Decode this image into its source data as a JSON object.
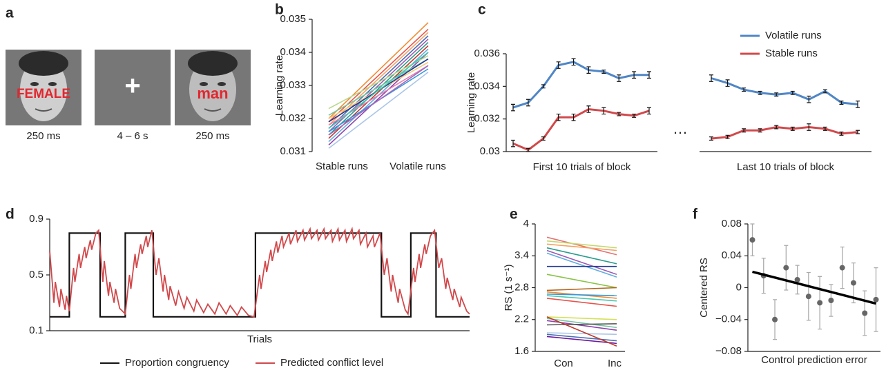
{
  "panel_a": {
    "label": "a",
    "frames": [
      {
        "caption": "250 ms",
        "word": "FEMALE"
      },
      {
        "caption": "4 – 6 s",
        "symbol": "+"
      },
      {
        "caption": "250 ms",
        "word": "man"
      }
    ]
  },
  "chart_data": [
    {
      "type": "line",
      "panel": "b",
      "ylabel": "Learning rate",
      "categories": [
        "Stable runs",
        "Volatile runs"
      ],
      "ylim": [
        0.031,
        0.035
      ],
      "yticks": [
        0.031,
        0.032,
        0.033,
        0.034,
        0.035
      ],
      "series": [
        {
          "color": "#f28a30",
          "values": [
            0.032,
            0.0349
          ]
        },
        {
          "color": "#e8534a",
          "values": [
            0.0319,
            0.0347
          ]
        },
        {
          "color": "#f4a261",
          "values": [
            0.0318,
            0.0346
          ]
        },
        {
          "color": "#4b6fb5",
          "values": [
            0.0317,
            0.0345
          ]
        },
        {
          "color": "#9b59b6",
          "values": [
            0.0316,
            0.0344
          ]
        },
        {
          "color": "#2a9d8f",
          "values": [
            0.0315,
            0.0343
          ]
        },
        {
          "color": "#c0392b",
          "values": [
            0.0314,
            0.0342
          ]
        },
        {
          "color": "#5dade2",
          "values": [
            0.0313,
            0.0341
          ]
        },
        {
          "color": "#8e44ad",
          "values": [
            0.0312,
            0.034
          ]
        },
        {
          "color": "#b5d98a",
          "values": [
            0.0323,
            0.0339
          ]
        },
        {
          "color": "#76c7a1",
          "values": [
            0.0321,
            0.0338
          ]
        },
        {
          "color": "#f7c873",
          "values": [
            0.032,
            0.0337
          ]
        },
        {
          "color": "#e67eb0",
          "values": [
            0.0318,
            0.0336
          ]
        },
        {
          "color": "#3498db",
          "values": [
            0.0316,
            0.0335
          ]
        },
        {
          "color": "#aac4e8",
          "values": [
            0.0311,
            0.0334
          ]
        },
        {
          "color": "#1f3a93",
          "values": [
            0.0319,
            0.0338
          ]
        },
        {
          "color": "#48c9b0",
          "values": [
            0.0317,
            0.034
          ]
        },
        {
          "color": "#a569bd",
          "values": [
            0.0315,
            0.0336
          ]
        }
      ]
    },
    {
      "type": "line",
      "panel": "c",
      "ylabel": "Learning rate",
      "xlabels": [
        "First 10 trials of block",
        "Last 10 trials of block"
      ],
      "gap_label": "…",
      "ylim": [
        0.03,
        0.036
      ],
      "yticks": [
        0.03,
        0.032,
        0.034,
        0.036
      ],
      "legend": "upper right",
      "series": [
        {
          "name": "Volatile runs",
          "color": "#4f86c6",
          "values": [
            0.0327,
            0.033,
            0.034,
            0.0353,
            0.0355,
            0.035,
            0.0349,
            0.0345,
            0.0347,
            0.0347,
            0.0345,
            0.0342,
            0.0338,
            0.0336,
            0.0335,
            0.0336,
            0.0332,
            0.0337,
            0.033,
            0.0329
          ],
          "errors": [
            0.0002,
            0.0002,
            0.0001,
            0.0002,
            0.0002,
            0.0002,
            0.0001,
            0.0002,
            0.0002,
            0.0002,
            0.0002,
            0.0002,
            0.0001,
            0.0001,
            0.0001,
            0.0001,
            0.0002,
            0.0001,
            0.0001,
            0.0002
          ]
        },
        {
          "name": "Stable runs",
          "color": "#d1484b",
          "values": [
            0.0305,
            0.0301,
            0.0308,
            0.0321,
            0.0321,
            0.0326,
            0.0325,
            0.0323,
            0.0322,
            0.0325,
            0.0308,
            0.0309,
            0.0313,
            0.0313,
            0.0315,
            0.0314,
            0.0315,
            0.0314,
            0.0311,
            0.0312
          ],
          "errors": [
            0.0002,
            0.0001,
            0.0001,
            0.0002,
            0.0002,
            0.0002,
            0.0002,
            0.0001,
            0.0001,
            0.0002,
            0.0001,
            0.0001,
            0.0001,
            0.0001,
            0.0001,
            0.0001,
            0.0002,
            0.0001,
            0.0001,
            0.0001
          ]
        }
      ]
    },
    {
      "type": "line",
      "panel": "d",
      "xlabel": "Trials",
      "xlim": [
        0,
        300
      ],
      "ylim": [
        0.1,
        0.9
      ],
      "yticks": [
        0.1,
        0.5,
        0.9
      ],
      "legend": "bottom",
      "series": [
        {
          "name": "Proportion congruency",
          "color": "#111111",
          "x": [
            0,
            14,
            14,
            36,
            36,
            54,
            54,
            74,
            74,
            147,
            147,
            237,
            237,
            258,
            258,
            276,
            276,
            300
          ],
          "values": [
            0.2,
            0.2,
            0.8,
            0.8,
            0.2,
            0.2,
            0.8,
            0.8,
            0.2,
            0.2,
            0.8,
            0.8,
            0.2,
            0.2,
            0.8,
            0.8,
            0.2,
            0.2
          ]
        },
        {
          "name": "Predicted conflict level",
          "color": "#d1484b",
          "x": [
            0,
            3,
            4,
            7,
            8,
            11,
            12,
            14,
            17,
            18,
            21,
            22,
            25,
            26,
            29,
            30,
            33,
            35,
            38,
            39,
            42,
            43,
            46,
            47,
            50,
            52,
            54,
            57,
            58,
            61,
            62,
            65,
            66,
            69,
            70,
            73,
            76,
            78,
            81,
            82,
            85,
            86,
            90,
            92,
            96,
            98,
            103,
            105,
            110,
            113,
            118,
            121,
            126,
            129,
            134,
            137,
            142,
            146,
            150,
            151,
            154,
            155,
            158,
            159,
            162,
            163,
            166,
            167,
            171,
            172,
            176,
            177,
            181,
            182,
            186,
            187,
            191,
            192,
            196,
            197,
            201,
            202,
            206,
            207,
            211,
            212,
            216,
            217,
            221,
            222,
            226,
            227,
            231,
            232,
            236,
            239,
            241,
            244,
            245,
            249,
            250,
            254,
            256,
            260,
            261,
            264,
            265,
            268,
            269,
            272,
            275,
            278,
            280,
            283,
            284,
            288,
            289,
            293,
            294,
            298,
            300
          ],
          "values": [
            0.67,
            0.3,
            0.45,
            0.27,
            0.4,
            0.25,
            0.35,
            0.24,
            0.55,
            0.45,
            0.65,
            0.55,
            0.7,
            0.62,
            0.75,
            0.68,
            0.8,
            0.82,
            0.45,
            0.6,
            0.35,
            0.45,
            0.3,
            0.4,
            0.26,
            0.24,
            0.22,
            0.5,
            0.4,
            0.65,
            0.55,
            0.72,
            0.65,
            0.78,
            0.7,
            0.82,
            0.5,
            0.62,
            0.38,
            0.5,
            0.32,
            0.42,
            0.28,
            0.38,
            0.26,
            0.34,
            0.24,
            0.32,
            0.23,
            0.29,
            0.22,
            0.3,
            0.22,
            0.28,
            0.21,
            0.27,
            0.21,
            0.2,
            0.5,
            0.4,
            0.6,
            0.52,
            0.68,
            0.6,
            0.74,
            0.66,
            0.78,
            0.7,
            0.8,
            0.72,
            0.82,
            0.74,
            0.82,
            0.75,
            0.83,
            0.76,
            0.82,
            0.75,
            0.83,
            0.76,
            0.82,
            0.74,
            0.83,
            0.75,
            0.82,
            0.74,
            0.83,
            0.76,
            0.82,
            0.72,
            0.8,
            0.7,
            0.78,
            0.7,
            0.8,
            0.5,
            0.62,
            0.38,
            0.5,
            0.3,
            0.4,
            0.25,
            0.22,
            0.55,
            0.45,
            0.65,
            0.55,
            0.72,
            0.65,
            0.78,
            0.82,
            0.55,
            0.62,
            0.4,
            0.48,
            0.32,
            0.4,
            0.27,
            0.34,
            0.24,
            0.22
          ]
        }
      ]
    },
    {
      "type": "line",
      "panel": "e",
      "ylabel": "RS (1 s⁻¹)",
      "categories": [
        "Con",
        "Inc"
      ],
      "ylim": [
        1.6,
        4
      ],
      "yticks": [
        1.6,
        2.2,
        2.8,
        3.4,
        4
      ],
      "series": [
        {
          "color": "#e57373",
          "values": [
            3.75,
            3.42
          ]
        },
        {
          "color": "#c5d86d",
          "values": [
            3.68,
            3.55
          ]
        },
        {
          "color": "#f4a261",
          "values": [
            3.62,
            3.5
          ]
        },
        {
          "color": "#2a9d8f",
          "values": [
            3.55,
            3.25
          ]
        },
        {
          "color": "#9b59b6",
          "values": [
            3.5,
            3.05
          ]
        },
        {
          "color": "#5dade2",
          "values": [
            3.45,
            3.0
          ]
        },
        {
          "color": "#1f3a93",
          "values": [
            3.2,
            3.2
          ]
        },
        {
          "color": "#8bc34a",
          "values": [
            3.05,
            2.8
          ]
        },
        {
          "color": "#b5651d",
          "values": [
            2.75,
            2.8
          ]
        },
        {
          "color": "#f28a30",
          "values": [
            2.72,
            2.6
          ]
        },
        {
          "color": "#3498db",
          "values": [
            2.68,
            2.65
          ]
        },
        {
          "color": "#48c9b0",
          "values": [
            2.65,
            2.55
          ]
        },
        {
          "color": "#e8534a",
          "values": [
            2.6,
            2.45
          ]
        },
        {
          "color": "#d4e157",
          "values": [
            2.25,
            2.2
          ]
        },
        {
          "color": "#76c7a1",
          "values": [
            2.22,
            2.05
          ]
        },
        {
          "color": "#8e44ad",
          "values": [
            2.18,
            2.0
          ]
        },
        {
          "color": "#555555",
          "values": [
            2.1,
            2.12
          ]
        },
        {
          "color": "#aac4e8",
          "values": [
            1.95,
            1.92
          ]
        },
        {
          "color": "#4b6fb5",
          "values": [
            1.92,
            1.8
          ]
        },
        {
          "color": "#6a1b9a",
          "values": [
            1.88,
            1.75
          ]
        },
        {
          "color": "#c0392b",
          "values": [
            2.25,
            1.7
          ]
        }
      ]
    },
    {
      "type": "scatter",
      "panel": "f",
      "xlabel": "Control prediction error",
      "ylabel": "Centered RS",
      "xlim": [
        0.6,
        12.4
      ],
      "ylim": [
        -0.08,
        0.08
      ],
      "yticks": [
        {
          "value": -0.08,
          "label": "−0.08"
        },
        {
          "value": -0.04,
          "label": "−0.04"
        },
        0,
        0.04,
        0.08
      ],
      "color": "#666666",
      "error_color": "#aaaaaa",
      "x": [
        1,
        2,
        3,
        4,
        5,
        6,
        7,
        8,
        9,
        10,
        11,
        12
      ],
      "values": [
        0.06,
        0.015,
        -0.04,
        0.025,
        0.01,
        -0.011,
        -0.019,
        -0.016,
        0.025,
        0.006,
        -0.032,
        -0.015
      ],
      "errors": [
        0.02,
        0.022,
        0.025,
        0.028,
        0.018,
        0.03,
        0.033,
        0.02,
        0.026,
        0.025,
        0.028,
        0.04
      ],
      "fit": {
        "color": "#000000",
        "x": [
          1,
          12
        ],
        "values": [
          0.02,
          -0.02
        ]
      }
    }
  ]
}
